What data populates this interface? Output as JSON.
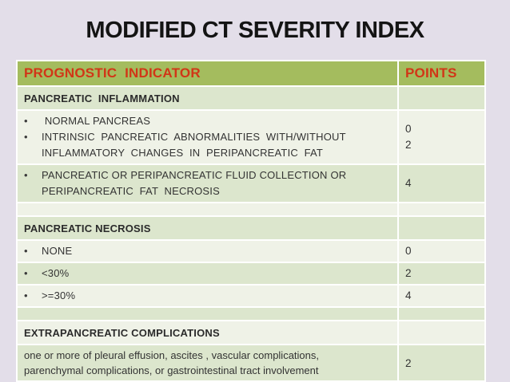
{
  "title": "MODIFIED CT SEVERITY INDEX",
  "colors": {
    "slide_background": "#e3dee9",
    "header_green": "#a4bc5e",
    "row_green": "#dce6cd",
    "row_light": "#eff2e7",
    "header_text_red": "#d13617",
    "body_text": "#333333",
    "title_text": "#141414",
    "grid_lines": "#ffffff"
  },
  "table": {
    "header": {
      "indicator": "PROGNOSTIC  INDICATOR",
      "points": "POINTS"
    },
    "rows": [
      {
        "kind": "section",
        "label": "PANCREATIC  INFLAMMATION",
        "points": []
      },
      {
        "kind": "bullets",
        "lines": [
          {
            "bullet": true,
            "text": " NORMAL PANCREAS"
          },
          {
            "bullet": true,
            "text": "INTRINSIC  PANCREATIC  ABNORMALITIES  WITH/WITHOUT"
          },
          {
            "bullet": false,
            "text": "INFLAMMATORY  CHANGES  IN  PERIPANCREATIC  FAT"
          }
        ],
        "points": [
          "0",
          "",
          "2"
        ]
      },
      {
        "kind": "bullets",
        "lines": [
          {
            "bullet": true,
            "text": "PANCREATIC OR PERIPANCREATIC FLUID COLLECTION OR"
          },
          {
            "bullet": false,
            "text": "PERIPANCREATIC  FAT  NECROSIS"
          }
        ],
        "points": [
          "",
          "4"
        ]
      },
      {
        "kind": "empty"
      },
      {
        "kind": "section",
        "label": "PANCREATIC NECROSIS",
        "points": []
      },
      {
        "kind": "bullets",
        "lines": [
          {
            "bullet": true,
            "text": "NONE"
          }
        ],
        "points": [
          "0"
        ]
      },
      {
        "kind": "bullets",
        "lines": [
          {
            "bullet": true,
            "text": "<30%"
          }
        ],
        "points": [
          "2"
        ]
      },
      {
        "kind": "bullets",
        "lines": [
          {
            "bullet": true,
            "text": ">=30%"
          }
        ],
        "points": [
          "4"
        ]
      },
      {
        "kind": "empty"
      },
      {
        "kind": "section",
        "label": "EXTRAPANCREATIC COMPLICATIONS",
        "points": []
      },
      {
        "kind": "text",
        "lines": [
          {
            "bullet": false,
            "text": "one or more of pleural effusion, ascites , vascular complications,"
          },
          {
            "bullet": false,
            "text": "parenchymal complications, or gastrointestinal tract involvement"
          }
        ],
        "points": [
          "2",
          ""
        ]
      }
    ]
  }
}
